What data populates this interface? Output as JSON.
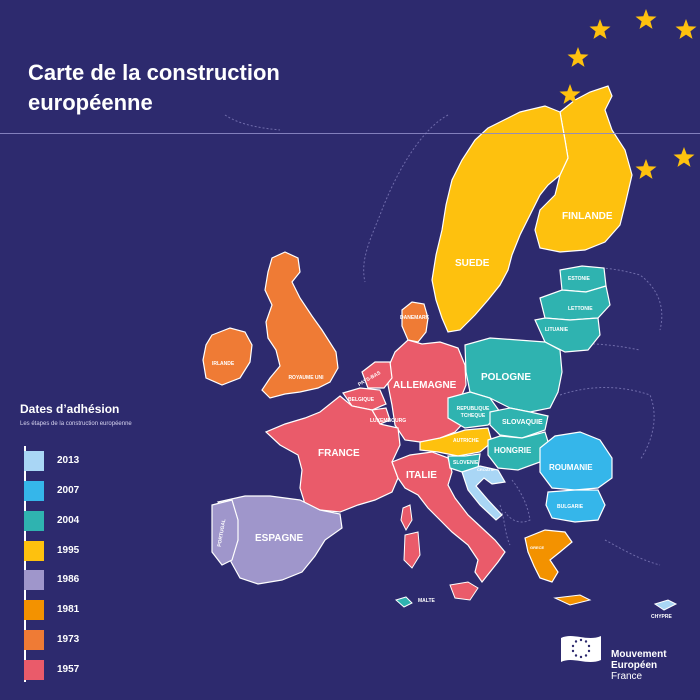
{
  "header": {
    "title": "Carte de la construction européenne"
  },
  "legend": {
    "title": "Dates d’adhésion",
    "subtitle": "Les étapes de la construction européenne",
    "items": [
      {
        "year": "2013",
        "color": "#a9d6f5"
      },
      {
        "year": "2007",
        "color": "#35b6ea"
      },
      {
        "year": "2004",
        "color": "#2fb3b0"
      },
      {
        "year": "1995",
        "color": "#fec10e"
      },
      {
        "year": "1986",
        "color": "#9f96cb"
      },
      {
        "year": "1981",
        "color": "#f39200"
      },
      {
        "year": "1973",
        "color": "#ef7b35"
      },
      {
        "year": "1957",
        "color": "#ea5b6a"
      }
    ]
  },
  "map": {
    "background_color": "#2d2a6e",
    "non_member_outline_color": "#8c88c4",
    "country_border_color": "#ffffff",
    "stars_color": "#fec10e",
    "countries": {
      "finlande": {
        "label": "FINLANDE",
        "year": "1995"
      },
      "suede": {
        "label": "SUEDE",
        "year": "1995"
      },
      "estonie": {
        "label": "ESTONIE",
        "year": "2004"
      },
      "lettonie": {
        "label": "LETTONIE",
        "year": "2004"
      },
      "lituanie": {
        "label": "LITUANIE",
        "year": "2004"
      },
      "danemark": {
        "label": "DANEMARK",
        "year": "1973"
      },
      "royaume_uni": {
        "label": "ROYAUME UNI",
        "year": "1973"
      },
      "irlande": {
        "label": "IRLANDE",
        "year": "1973"
      },
      "pays_bas": {
        "label": "PAYS-BAS",
        "year": "1957"
      },
      "belgique": {
        "label": "BELGIQUE",
        "year": "1957"
      },
      "luxembourg": {
        "label": "LUXEMBOURG",
        "year": "1957"
      },
      "allemagne": {
        "label": "ALLEMAGNE",
        "year": "1957"
      },
      "pologne": {
        "label": "POLOGNE",
        "year": "2004"
      },
      "republique_tcheque": {
        "label": "REPUBLIQUE TCHEQUE",
        "year": "2004"
      },
      "slovaquie": {
        "label": "SLOVAQUIE",
        "year": "2004"
      },
      "autriche": {
        "label": "AUTRICHE",
        "year": "1995"
      },
      "hongrie": {
        "label": "HONGRIE",
        "year": "2004"
      },
      "slovenie": {
        "label": "SLOVENIE",
        "year": "2004"
      },
      "croatie": {
        "label": "CROATIE",
        "year": "2013"
      },
      "roumanie": {
        "label": "ROUMANIE",
        "year": "2007"
      },
      "bulgarie": {
        "label": "BULGARIE",
        "year": "2007"
      },
      "france": {
        "label": "FRANCE",
        "year": "1957"
      },
      "italie": {
        "label": "ITALIE",
        "year": "1957"
      },
      "espagne": {
        "label": "ESPAGNE",
        "year": "1986"
      },
      "portugal": {
        "label": "PORTUGAL",
        "year": "1986"
      },
      "grece": {
        "label": "GRECE",
        "year": "1981"
      },
      "malte": {
        "label": "MALTE",
        "year": "2004"
      },
      "chypre": {
        "label": "CHYPRE",
        "year": "2004"
      }
    }
  },
  "brand": {
    "name": "Mouvement Européen",
    "country": "France"
  }
}
